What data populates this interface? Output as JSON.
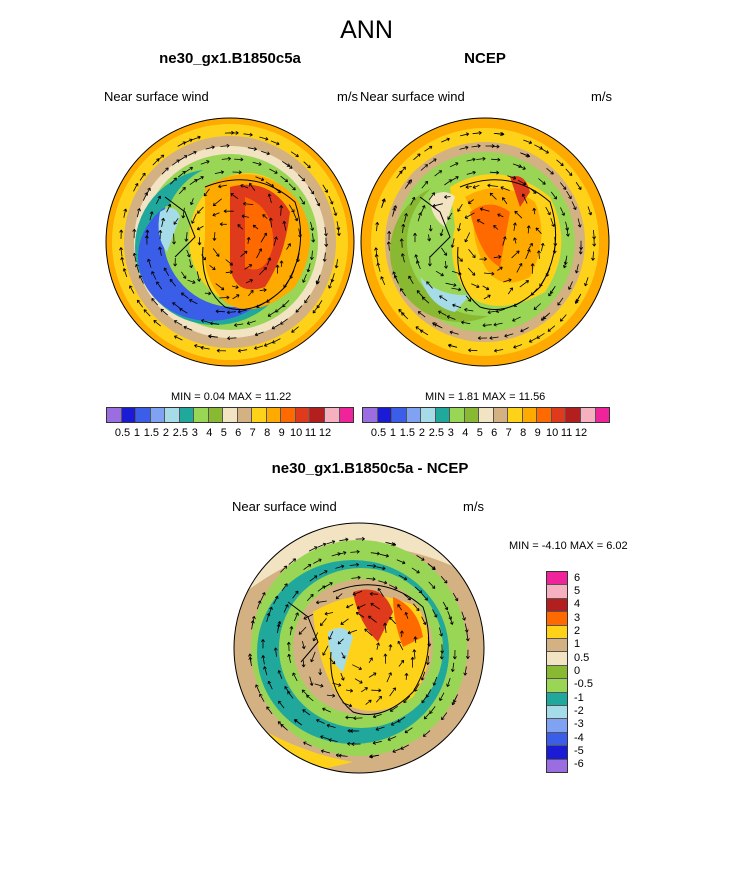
{
  "title": "ANN",
  "panels": [
    {
      "title": "ne30_gx1.B1850c5a",
      "left_label": "Near surface wind",
      "right_label": "m/s",
      "min_label": "MIN =",
      "min": "0.04",
      "max_label": "MAX =",
      "max": "11.22"
    },
    {
      "title": "NCEP",
      "left_label": "Near surface wind",
      "right_label": "m/s",
      "min_label": "MIN =",
      "min": "1.81",
      "max_label": "MAX =",
      "max": "11.56"
    },
    {
      "title": "ne30_gx1.B1850c5a - NCEP",
      "left_label": "Near surface wind",
      "right_label": "m/s",
      "min_label": "MIN =",
      "min": "-4.10",
      "max_label": "MAX =",
      "max": "6.02"
    }
  ],
  "colorbar_abs": {
    "colors": [
      "#9a6de0",
      "#1b1bd6",
      "#3a5ee8",
      "#7fa3f2",
      "#a6dbe8",
      "#21a89c",
      "#9ad655",
      "#89b832",
      "#f2e3c2",
      "#d4b182",
      "#ffd21a",
      "#ffaa00",
      "#ff6a00",
      "#e03a1c",
      "#b31f1f",
      "#f7b0c0",
      "#f0249a"
    ],
    "labels": [
      "0.5",
      "1",
      "1.5",
      "2",
      "2.5",
      "3",
      "4",
      "5",
      "6",
      "7",
      "8",
      "9",
      "10",
      "11",
      "12"
    ]
  },
  "colorbar_diff": {
    "colors": [
      "#f0249a",
      "#f7b0c0",
      "#b31f1f",
      "#ff6a00",
      "#ffd21a",
      "#d4b182",
      "#f2e3c2",
      "#89b832",
      "#9ad655",
      "#21a89c",
      "#a6dbe8",
      "#7fa3f2",
      "#3a5ee8",
      "#1b1bd6",
      "#9a6de0"
    ],
    "labels": [
      "6",
      "5",
      "4",
      "3",
      "2",
      "1",
      "0.5",
      "0",
      "-0.5",
      "-1",
      "-2",
      "-3",
      "-4",
      "-5",
      "-6"
    ]
  }
}
